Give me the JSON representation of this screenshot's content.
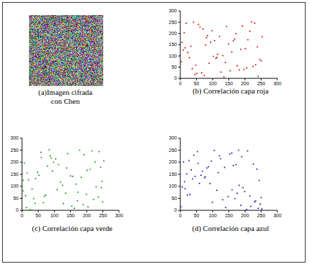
{
  "chart_data": [
    {
      "type": "image",
      "title": "(a)Imagen cifrada\ncon Chen"
    },
    {
      "type": "scatter",
      "title": "(b) Correlación capa roja",
      "color": "#d42020",
      "marker": "point",
      "xlim": [
        0,
        300
      ],
      "ylim": [
        0,
        300
      ],
      "xticks": [
        0,
        50,
        100,
        150,
        200,
        250,
        300
      ],
      "yticks": [
        0,
        50,
        100,
        150,
        200,
        250,
        300
      ],
      "x": [
        12,
        45,
        78,
        110,
        143,
        176,
        209,
        241,
        23,
        56,
        89,
        121,
        154,
        187,
        220,
        250,
        5,
        37,
        70,
        102,
        135,
        168,
        201,
        233,
        18,
        51,
        84,
        116,
        149,
        182,
        215,
        246,
        9,
        41,
        74,
        106,
        139,
        172,
        205,
        238,
        28,
        61,
        94,
        126,
        159,
        192,
        225,
        253,
        3,
        33,
        66,
        98,
        131,
        164,
        197,
        230,
        15,
        48,
        81,
        113
      ],
      "values": [
        203,
        17,
        148,
        89,
        231,
        56,
        172,
        9,
        115,
        240,
        67,
        186,
        34,
        129,
        251,
        78,
        160,
        43,
        219,
        98,
        6,
        175,
        132,
        61,
        245,
        22,
        190,
        107,
        153,
        38,
        210,
        84,
        126,
        250,
        13,
        168,
        71,
        199,
        47,
        140,
        92,
        228,
        161,
        28,
        117,
        233,
        53,
        185,
        74,
        143,
        24,
        212,
        101,
        167,
        39,
        246,
        136,
        59,
        181,
        93
      ]
    },
    {
      "type": "scatter",
      "title": "(c) Correlación capa verde",
      "color": "#2a9a2a",
      "marker": "point",
      "xlim": [
        0,
        300
      ],
      "ylim": [
        0,
        300
      ],
      "xticks": [
        0,
        50,
        100,
        150,
        200,
        250,
        300
      ],
      "yticks": [
        0,
        50,
        100,
        150,
        200,
        250,
        300
      ],
      "x": [
        31,
        204,
        87,
        150,
        11,
        243,
        66,
        178,
        119,
        7,
        221,
        94,
        162,
        42,
        253,
        135,
        58,
        189,
        16,
        229,
        104,
        171,
        79,
        247,
        25,
        141,
        199,
        52,
        113,
        236,
        84,
        167,
        3,
        211,
        128,
        60,
        183,
        36,
        245,
        97,
        154,
        20,
        216,
        73,
        138,
        249,
        48,
        192,
        109,
        14,
        226,
        157,
        69,
        238,
        125,
        40,
        201,
        90,
        173,
        4
      ],
      "values": [
        88,
        14,
        226,
        143,
        61,
        179,
        32,
        250,
        117,
        196,
        45,
        163,
        8,
        132,
        205,
        71,
        241,
        24,
        155,
        98,
        213,
        39,
        184,
        120,
        3,
        236,
        67,
        146,
        190,
        55,
        252,
        109,
        81,
        170,
        28,
        219,
        137,
        49,
        94,
        200,
        17,
        127,
        247,
        63,
        176,
        35,
        158,
        231,
        86,
        11,
        201,
        141,
        58,
        244,
        104,
        29,
        166,
        217,
        75,
        125
      ]
    },
    {
      "type": "scatter",
      "title": "(d) Correlación capa azul",
      "color": "#3030c8",
      "marker": "point",
      "xlim": [
        0,
        300
      ],
      "ylim": [
        0,
        300
      ],
      "xticks": [
        0,
        50,
        100,
        150,
        200,
        250,
        300
      ],
      "yticks": [
        0,
        50,
        100,
        150,
        200,
        250,
        300
      ],
      "x": [
        140,
        27,
        199,
        68,
        233,
        105,
        13,
        172,
        250,
        46,
        121,
        187,
        82,
        6,
        215,
        153,
        38,
        241,
        96,
        176,
        20,
        131,
        208,
        59,
        164,
        247,
        34,
        113,
        190,
        75,
        2,
        226,
        148,
        53,
        182,
        99,
        237,
        15,
        125,
        205,
        64,
        159,
        30,
        244,
        87,
        169,
        10,
        218,
        117,
        42,
        194,
        77,
        252,
        137,
        22,
        180,
        92,
        230,
        55,
        160
      ],
      "values": [
        12,
        207,
        78,
        162,
        39,
        249,
        119,
        190,
        53,
        141,
        227,
        21,
        176,
        97,
        60,
        234,
        130,
        8,
        205,
        71,
        152,
        44,
        247,
        112,
        186,
        26,
        168,
        83,
        223,
        135,
        15,
        192,
        57,
        244,
        104,
        33,
        171,
        90,
        215,
        3,
        146,
        238,
        66,
        124,
        181,
        49,
        201,
        16,
        157,
        229,
        94,
        139,
        6,
        178,
        63,
        250,
        111,
        35,
        195,
        85
      ]
    }
  ]
}
